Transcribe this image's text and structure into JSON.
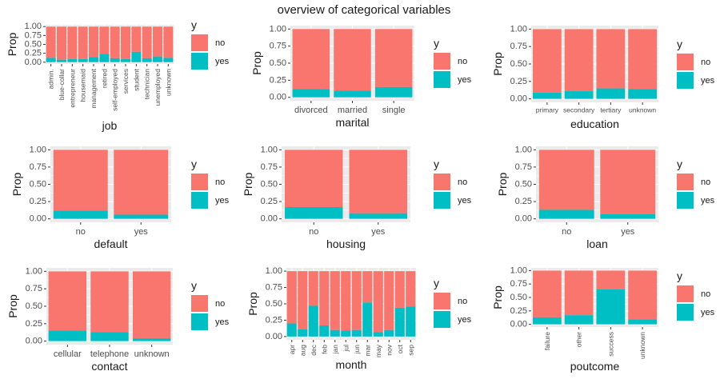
{
  "title": "overview of categorical variables",
  "colors": {
    "no": "#F8766D",
    "yes": "#00BFC4",
    "panel_bg": "#EBEBEB",
    "grid": "#FFFFFF"
  },
  "chart_data": [
    {
      "type": "bar",
      "stacked": true,
      "xlabel": "job",
      "ylabel": "Prop",
      "ylim": [
        0,
        1
      ],
      "yticks": [
        "0.00",
        "0.25",
        "0.50",
        "0.75",
        "1.00"
      ],
      "x_label_rotation": 90,
      "categories": [
        "admin.",
        "blue-collar",
        "entrepreneur",
        "housemaid",
        "management",
        "retired",
        "self-employed",
        "services",
        "student",
        "technician",
        "unemployed",
        "unknown"
      ],
      "series": [
        {
          "name": "no",
          "values": [
            0.88,
            0.93,
            0.91,
            0.91,
            0.86,
            0.77,
            0.89,
            0.91,
            0.71,
            0.89,
            0.84,
            0.88
          ]
        },
        {
          "name": "yes",
          "values": [
            0.12,
            0.07,
            0.09,
            0.09,
            0.14,
            0.23,
            0.11,
            0.09,
            0.29,
            0.11,
            0.16,
            0.12
          ]
        }
      ],
      "legend": {
        "title": "y",
        "entries": [
          "no",
          "yes"
        ],
        "position": "right"
      }
    },
    {
      "type": "bar",
      "stacked": true,
      "xlabel": "marital",
      "ylabel": "Prop",
      "ylim": [
        0,
        1
      ],
      "yticks": [
        "0.00",
        "0.25",
        "0.50",
        "0.75",
        "1.00"
      ],
      "x_label_rotation": 0,
      "categories": [
        "divorced",
        "married",
        "single"
      ],
      "series": [
        {
          "name": "no",
          "values": [
            0.88,
            0.9,
            0.85
          ]
        },
        {
          "name": "yes",
          "values": [
            0.12,
            0.1,
            0.15
          ]
        }
      ],
      "legend": {
        "title": "y",
        "entries": [
          "no",
          "yes"
        ],
        "position": "right"
      }
    },
    {
      "type": "bar",
      "stacked": true,
      "xlabel": "education",
      "ylabel": "Prop",
      "ylim": [
        0,
        1
      ],
      "yticks": [
        "0.00",
        "0.25",
        "0.50",
        "0.75",
        "1.00"
      ],
      "x_label_rotation": 0,
      "categories": [
        "primary",
        "secondary",
        "tertiary",
        "unknown"
      ],
      "series": [
        {
          "name": "no",
          "values": [
            0.91,
            0.89,
            0.85,
            0.86
          ]
        },
        {
          "name": "yes",
          "values": [
            0.09,
            0.11,
            0.15,
            0.14
          ]
        }
      ],
      "legend": {
        "title": "y",
        "entries": [
          "no",
          "yes"
        ],
        "position": "right"
      }
    },
    {
      "type": "bar",
      "stacked": true,
      "xlabel": "default",
      "ylabel": "Prop",
      "ylim": [
        0,
        1
      ],
      "yticks": [
        "0.00",
        "0.25",
        "0.50",
        "0.75",
        "1.00"
      ],
      "x_label_rotation": 0,
      "categories": [
        "no",
        "yes"
      ],
      "series": [
        {
          "name": "no",
          "values": [
            0.88,
            0.94
          ]
        },
        {
          "name": "yes",
          "values": [
            0.12,
            0.06
          ]
        }
      ],
      "legend": {
        "title": "y",
        "entries": [
          "no",
          "yes"
        ],
        "position": "right"
      }
    },
    {
      "type": "bar",
      "stacked": true,
      "xlabel": "housing",
      "ylabel": "Prop",
      "ylim": [
        0,
        1
      ],
      "yticks": [
        "0.00",
        "0.25",
        "0.50",
        "0.75",
        "1.00"
      ],
      "x_label_rotation": 0,
      "categories": [
        "no",
        "yes"
      ],
      "series": [
        {
          "name": "no",
          "values": [
            0.83,
            0.92
          ]
        },
        {
          "name": "yes",
          "values": [
            0.17,
            0.08
          ]
        }
      ],
      "legend": {
        "title": "y",
        "entries": [
          "no",
          "yes"
        ],
        "position": "right"
      }
    },
    {
      "type": "bar",
      "stacked": true,
      "xlabel": "loan",
      "ylabel": "Prop",
      "ylim": [
        0,
        1
      ],
      "yticks": [
        "0.00",
        "0.25",
        "0.50",
        "0.75",
        "1.00"
      ],
      "x_label_rotation": 0,
      "categories": [
        "no",
        "yes"
      ],
      "series": [
        {
          "name": "no",
          "values": [
            0.87,
            0.93
          ]
        },
        {
          "name": "yes",
          "values": [
            0.13,
            0.07
          ]
        }
      ],
      "legend": {
        "title": "y",
        "entries": [
          "no",
          "yes"
        ],
        "position": "right"
      }
    },
    {
      "type": "bar",
      "stacked": true,
      "xlabel": "contact",
      "ylabel": "Prop",
      "ylim": [
        0,
        1
      ],
      "yticks": [
        "0.00",
        "0.25",
        "0.50",
        "0.75",
        "1.00"
      ],
      "x_label_rotation": 0,
      "categories": [
        "cellular",
        "telephone",
        "unknown"
      ],
      "series": [
        {
          "name": "no",
          "values": [
            0.85,
            0.87,
            0.96
          ]
        },
        {
          "name": "yes",
          "values": [
            0.15,
            0.13,
            0.04
          ]
        }
      ],
      "legend": {
        "title": "y",
        "entries": [
          "no",
          "yes"
        ],
        "position": "right"
      }
    },
    {
      "type": "bar",
      "stacked": true,
      "xlabel": "month",
      "ylabel": "Prop",
      "ylim": [
        0,
        1
      ],
      "yticks": [
        "0.00",
        "0.25",
        "0.50",
        "0.75",
        "1.00"
      ],
      "x_label_rotation": 90,
      "categories": [
        "apr",
        "aug",
        "dec",
        "feb",
        "jan",
        "jul",
        "jun",
        "mar",
        "may",
        "nov",
        "oct",
        "sep"
      ],
      "series": [
        {
          "name": "no",
          "values": [
            0.8,
            0.89,
            0.53,
            0.83,
            0.9,
            0.91,
            0.9,
            0.48,
            0.93,
            0.9,
            0.56,
            0.54
          ]
        },
        {
          "name": "yes",
          "values": [
            0.2,
            0.11,
            0.47,
            0.17,
            0.1,
            0.09,
            0.1,
            0.52,
            0.07,
            0.1,
            0.44,
            0.46
          ]
        }
      ],
      "legend": {
        "title": "y",
        "entries": [
          "no",
          "yes"
        ],
        "position": "right"
      }
    },
    {
      "type": "bar",
      "stacked": true,
      "xlabel": "poutcome",
      "ylabel": "Prop",
      "ylim": [
        0,
        1
      ],
      "yticks": [
        "0.00",
        "0.25",
        "0.50",
        "0.75",
        "1.00"
      ],
      "x_label_rotation": 90,
      "categories": [
        "failure",
        "other",
        "success",
        "unknown"
      ],
      "series": [
        {
          "name": "no",
          "values": [
            0.87,
            0.83,
            0.35,
            0.91
          ]
        },
        {
          "name": "yes",
          "values": [
            0.13,
            0.17,
            0.65,
            0.09
          ]
        }
      ],
      "legend": {
        "title": "y",
        "entries": [
          "no",
          "yes"
        ],
        "position": "right"
      }
    }
  ]
}
